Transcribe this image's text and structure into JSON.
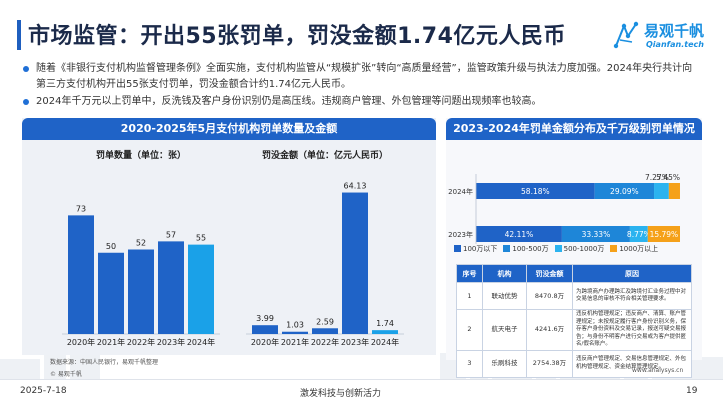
{
  "header": {
    "title": "市场监管：开出55张罚单，罚没金额1.74亿元人民币",
    "logo_cn": "易观千帆",
    "logo_en": "Qianfan.tech"
  },
  "bullets": [
    "随着《非银行支付机构监督管理条例》全面实施，支付机构监管从“规模扩张”转向“高质量经营”，监管政策升级与执法力度加强。2024年央行共计向第三方支付机构开出55张支付罚单，罚没金额合计约1.74亿元人民币。",
    "2024年千万元以上罚单中，反洗钱及客户身份识别仍是高压线。违规商户管理、外包管理等问题出现频率也较高。"
  ],
  "left_panel": {
    "title": "2020-2025年5月支付机构罚单数量及金额",
    "source": "数据来源：中国人民银行，易观千帆整理",
    "brand": "© 易观千帆"
  },
  "chart_data": [
    {
      "type": "bar",
      "title": "罚单数量（单位：张）",
      "categories": [
        "2020年",
        "2021年",
        "2022年",
        "2023年",
        "2024年"
      ],
      "values": [
        73,
        50,
        52,
        57,
        55
      ],
      "highlight_index": 4,
      "colors": {
        "normal": "#1f63c7",
        "highlight": "#1aa1e8"
      }
    },
    {
      "type": "bar",
      "title": "罚没金额（单位：亿元人民币）",
      "categories": [
        "2020年",
        "2021年",
        "2022年",
        "2023年",
        "2024年"
      ],
      "values": [
        3.99,
        1.03,
        2.59,
        64.13,
        1.74
      ],
      "highlight_index": 4,
      "colors": {
        "normal": "#1f63c7",
        "highlight": "#1aa1e8"
      }
    },
    {
      "type": "bar",
      "orientation": "horizontal",
      "stacked": "percent",
      "title": "2023-2024年罚单金额分布及千万级别罚单情况",
      "categories": [
        "2024年",
        "2023年"
      ],
      "series": [
        {
          "name": "100万以下",
          "values": [
            58.18,
            42.11
          ],
          "labels": [
            "58.18%",
            "42.11%"
          ],
          "color": "#1f63c7"
        },
        {
          "name": "100-500万",
          "values": [
            29.09,
            33.33
          ],
          "labels": [
            "29.09%",
            "33.33%"
          ],
          "color": "#1e86d8"
        },
        {
          "name": "500-1000万",
          "values": [
            7.27,
            8.77
          ],
          "labels": [
            "7.27%",
            "8.77%"
          ],
          "color": "#2bb3ef"
        },
        {
          "name": "1000万以上",
          "values": [
            5.45,
            15.79
          ],
          "labels": [
            "5.45%",
            "15.79%"
          ],
          "color": "#f5a11a"
        }
      ]
    }
  ],
  "fine_table": {
    "headers": [
      "序号",
      "机构",
      "罚没金额",
      "原因"
    ],
    "rows": [
      [
        "1",
        "联动优势",
        "8470.8万",
        "为跨境商户办理跨汇及跨境付汇业务过程中对交易信息的审核不符合相关管理要求。"
      ],
      [
        "2",
        "航天电子",
        "4241.6万",
        "违反机构管理规定；违反商户、清算、账户管理规定；未按规定履行客户身份识别义务，保存客户身份资料及交易记录，报送可疑交易报告；与身份不明客户进行交易或为客户提供匿名/假名账户。"
      ],
      [
        "3",
        "乐刷科技",
        "2754.38万",
        "违反商户管理规定、交易信息管理规定、外包机构管理规定、资金结算管理规定。"
      ]
    ]
  },
  "site": "www.analysys.cn",
  "footer": {
    "date": "2025-7-18",
    "slogan": "激发科技与创新活力",
    "page": "19"
  }
}
